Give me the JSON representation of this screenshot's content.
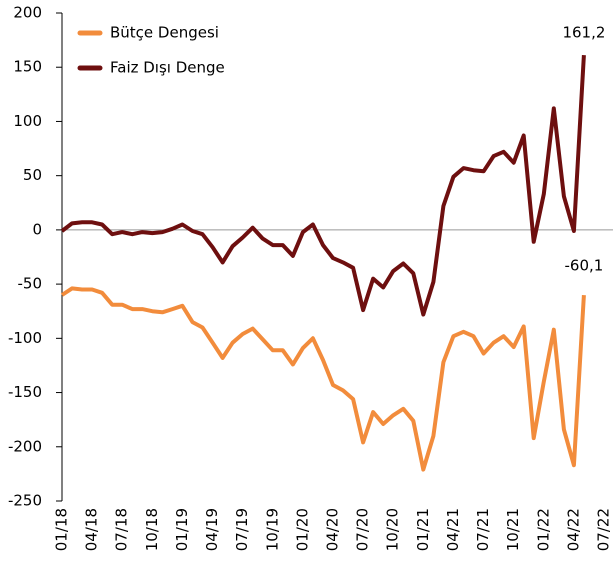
{
  "chart_data": {
    "type": "line",
    "categories": [
      "01/18",
      null,
      null,
      "04/18",
      null,
      null,
      "07/18",
      null,
      null,
      "10/18",
      null,
      null,
      "01/19",
      null,
      null,
      "04/19",
      null,
      null,
      "07/19",
      null,
      null,
      "10/19",
      null,
      null,
      "01/20",
      null,
      null,
      "04/20",
      null,
      null,
      "07/20",
      null,
      null,
      "10/20",
      null,
      null,
      "01/21",
      null,
      null,
      "04/21",
      null,
      null,
      "07/21",
      null,
      null,
      "10/21",
      null,
      null,
      "01/22",
      null,
      null,
      "04/22",
      null,
      null,
      "07/22"
    ],
    "series": [
      {
        "name": "Bütçe Dengesi",
        "color": "#f28c3c",
        "values": [
          -60,
          -54,
          -55,
          -55,
          -58,
          -69,
          -69,
          -73,
          -73,
          -75,
          -76,
          -73,
          -70,
          -85,
          -90,
          -104,
          -118,
          -104,
          -96,
          -91,
          -101,
          -111,
          -111,
          -124,
          -109,
          -100,
          -120,
          -143,
          -148,
          -156,
          -196,
          -168,
          -179,
          -171,
          -165,
          -176,
          -221,
          -190,
          -122,
          -98,
          -94,
          -98,
          -114,
          -104,
          -98,
          -108,
          -89,
          -192,
          -140,
          -92,
          -184,
          -217,
          -60.1,
          null,
          null
        ],
        "value_labels": [
          null,
          null,
          null,
          null,
          null,
          null,
          null,
          null,
          null,
          null,
          null,
          null,
          null,
          null,
          null,
          null,
          null,
          null,
          null,
          null,
          null,
          null,
          null,
          null,
          null,
          null,
          null,
          null,
          null,
          null,
          null,
          null,
          null,
          null,
          null,
          null,
          null,
          null,
          null,
          null,
          null,
          null,
          null,
          null,
          null,
          null,
          null,
          null,
          null,
          null,
          null,
          null,
          "-60,1",
          null,
          null
        ]
      },
      {
        "name": "Faiz Dışı Denge",
        "color": "#6e0f0f",
        "values": [
          -1,
          6,
          7,
          7,
          5,
          -4,
          -2,
          -4,
          -2,
          -3,
          -2,
          1,
          5,
          -1,
          -4,
          -16,
          -30,
          -15,
          -7,
          2,
          -8,
          -14,
          -14,
          -24,
          -2,
          5,
          -14,
          -26,
          -30,
          -35,
          -74,
          -45,
          -53,
          -38,
          -31,
          -40,
          -78,
          -48,
          22,
          49,
          57,
          55,
          54,
          68,
          72,
          62,
          87,
          -11,
          33,
          112,
          31,
          -1,
          161.2,
          null,
          null
        ],
        "value_labels": [
          null,
          null,
          null,
          null,
          null,
          null,
          null,
          null,
          null,
          null,
          null,
          null,
          null,
          null,
          null,
          null,
          null,
          null,
          null,
          null,
          null,
          null,
          null,
          null,
          null,
          null,
          null,
          null,
          null,
          null,
          null,
          null,
          null,
          null,
          null,
          null,
          null,
          null,
          null,
          null,
          null,
          null,
          null,
          null,
          null,
          null,
          null,
          null,
          null,
          null,
          null,
          null,
          "161,2",
          null,
          null
        ]
      }
    ],
    "ylim": [
      -250,
      200
    ],
    "yticks": [
      200,
      150,
      100,
      50,
      0,
      -50,
      -100,
      -150,
      -200,
      -250
    ],
    "legend": "upper-left",
    "zero_line": true
  }
}
